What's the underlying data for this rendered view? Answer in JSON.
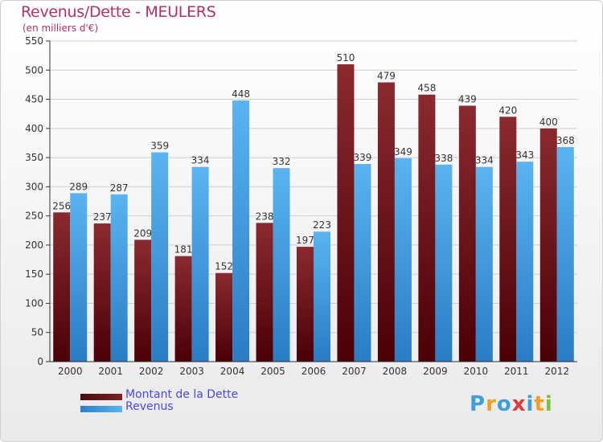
{
  "title": "Revenus/Dette - MEULERS",
  "subtitle": "(en milliers d'€)",
  "logo": {
    "text": "Proxiti",
    "letters": [
      "P",
      "r",
      "o",
      "x",
      "i",
      "t",
      "i"
    ],
    "colors": [
      "#3fa0d8",
      "#f0a020",
      "#3fa0d8",
      "#e03a3a",
      "#3fa0d8",
      "#f0a020",
      "#7cc040"
    ]
  },
  "colors": {
    "dette": "#7b1f24",
    "revenus": "#3da0e6",
    "grid": "#cfcfcf",
    "axis": "#333333"
  },
  "chart_data": {
    "type": "bar",
    "categories": [
      "2000",
      "2001",
      "2002",
      "2003",
      "2004",
      "2005",
      "2006",
      "2007",
      "2008",
      "2009",
      "2010",
      "2011",
      "2012"
    ],
    "series": [
      {
        "name": "Montant de la Dette",
        "values": [
          256,
          237,
          209,
          181,
          152,
          238,
          197,
          510,
          479,
          458,
          439,
          420,
          400
        ]
      },
      {
        "name": "Revenus",
        "values": [
          289,
          287,
          359,
          334,
          448,
          332,
          223,
          339,
          349,
          338,
          334,
          343,
          368
        ]
      }
    ],
    "ylim": [
      0,
      550
    ],
    "yticks": [
      0,
      50,
      100,
      150,
      200,
      250,
      300,
      350,
      400,
      450,
      500,
      550
    ],
    "grid": true,
    "legend": "bottom-left"
  }
}
